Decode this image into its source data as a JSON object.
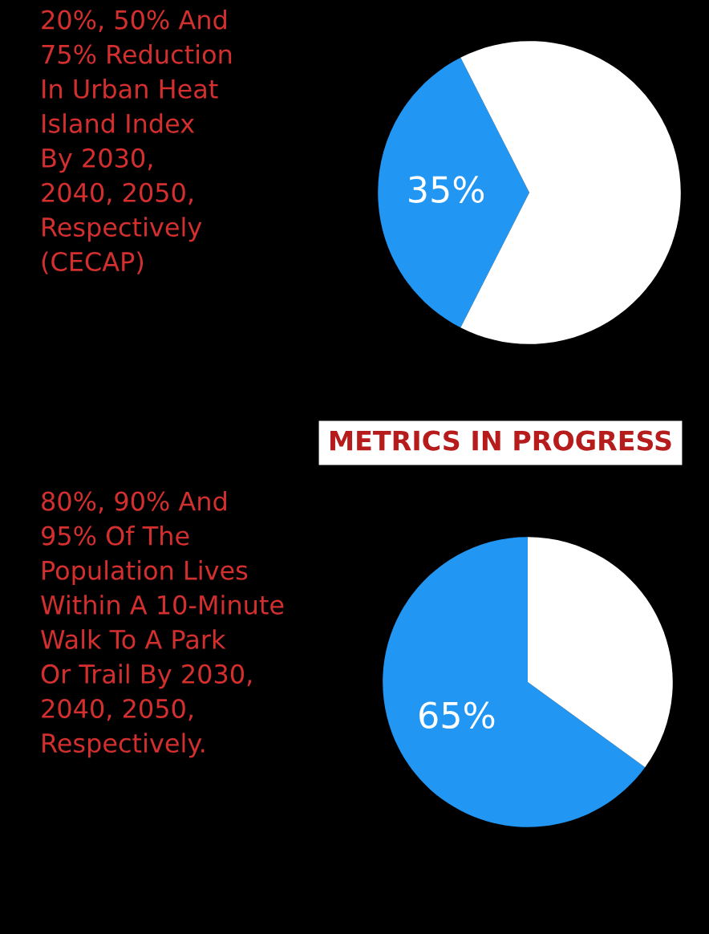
{
  "chart_data": [
    {
      "type": "pie",
      "title": "20%, 50% And\n75% Reduction\nIn Urban Heat\nIsland Index\nBy 2030,\n2040, 2050,\nRespectively\n(CECAP)",
      "categories": [
        null,
        null
      ],
      "values": [
        35,
        65
      ],
      "colors": [
        "#2196f3",
        "#ffffff"
      ],
      "value_labels": [
        "35%",
        null
      ],
      "annotations": [
        "METRICS IN PROGRESS"
      ]
    },
    {
      "type": "pie",
      "title": "80%, 90% And\n95% Of The\nPopulation Lives\nWithin A 10-Minute\nWalk To A Park\nOr Trail By 2030,\n2040, 2050,\nRespectively.",
      "categories": [
        null,
        null
      ],
      "values": [
        65,
        35
      ],
      "colors": [
        "#2196f3",
        "#ffffff"
      ],
      "value_labels": [
        "65%",
        null
      ]
    }
  ]
}
